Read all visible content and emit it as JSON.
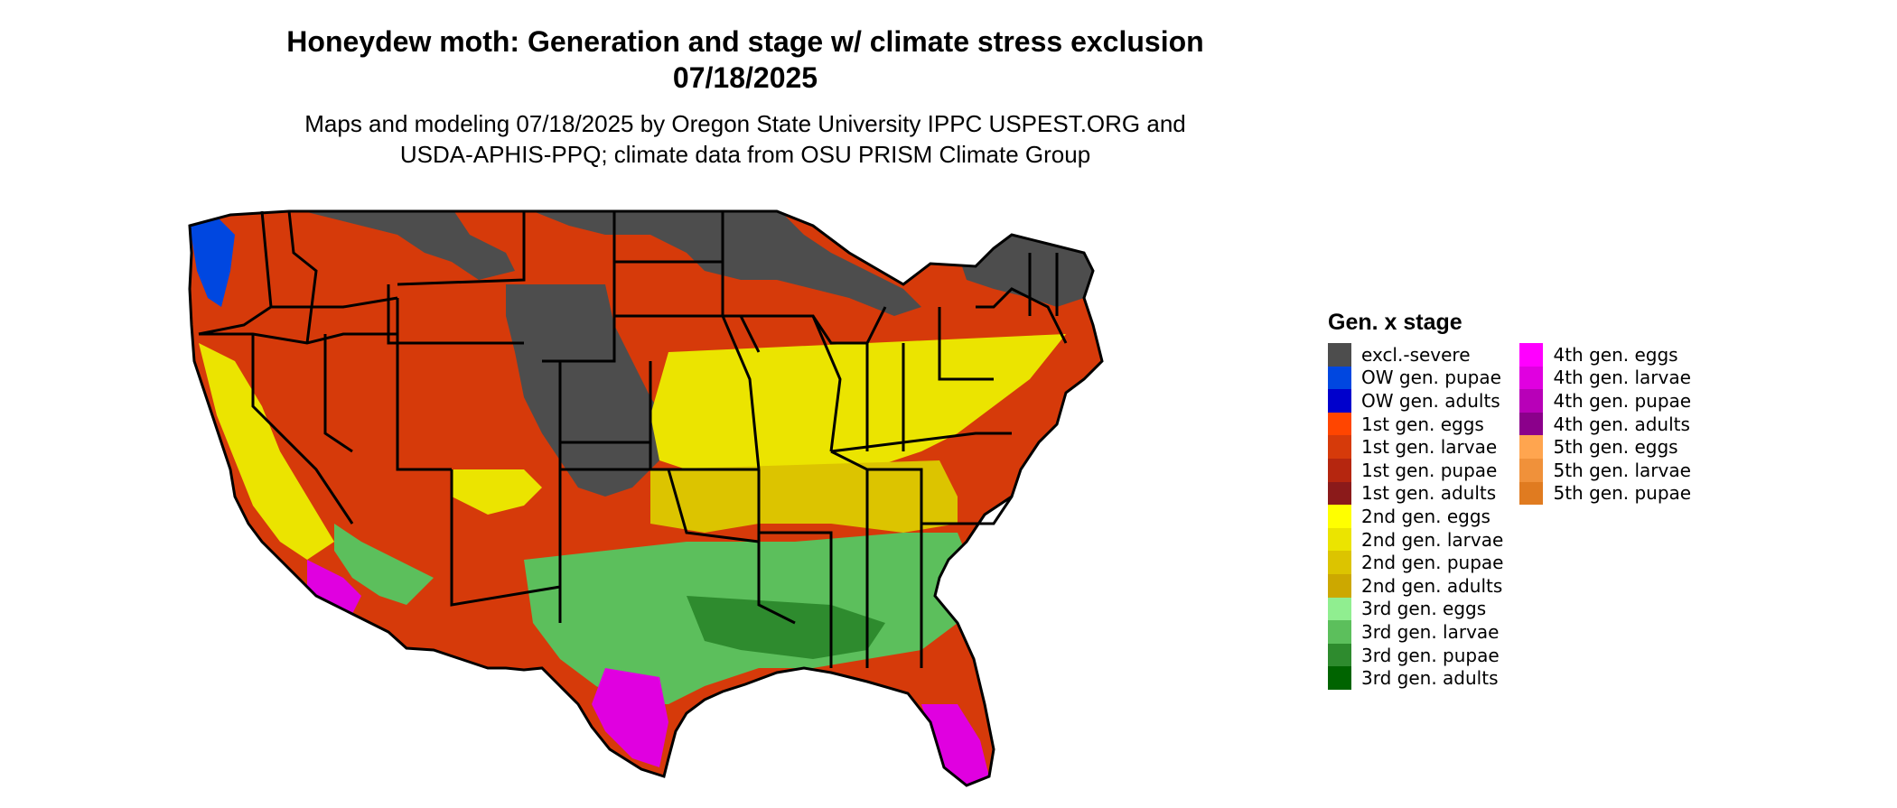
{
  "title": {
    "line1": "Honeydew moth: Generation and stage w/ climate stress exclusion",
    "line2": "07/18/2025"
  },
  "subtitle": {
    "line1": "Maps and modeling 07/18/2025 by Oregon State University IPPC USPEST.ORG and",
    "line2": "USDA-APHIS-PPQ; climate data from OSU PRISM Climate Group"
  },
  "colors": {
    "excluded": "#4d4d4d",
    "border": "#000000",
    "ow_pupae": "#0047e0",
    "gen1_larvae": "#d63a0a",
    "gen1_pupae": "#b5260f",
    "gen2_eggs": "#ffff00",
    "gen2_larvae": "#ebe400",
    "gen2_pupae": "#dcc400",
    "gen3_larvae": "#5cbf5c",
    "gen3_pupae": "#2e8b2e",
    "gen4_larvae": "#e000e0"
  },
  "legend": {
    "title": "Gen. x stage",
    "col1": [
      {
        "label": "excl.-severe",
        "color": "#4d4d4d"
      },
      {
        "label": "OW gen. pupae",
        "color": "#0047e0"
      },
      {
        "label": "OW gen. adults",
        "color": "#0000cc"
      },
      {
        "label": "1st gen. eggs",
        "color": "#ff4500"
      },
      {
        "label": "1st gen. larvae",
        "color": "#d63a0a"
      },
      {
        "label": "1st gen. pupae",
        "color": "#b5260f"
      },
      {
        "label": "1st gen. adults",
        "color": "#8b1a1a"
      },
      {
        "label": "2nd gen. eggs",
        "color": "#ffff00"
      },
      {
        "label": "2nd gen. larvae",
        "color": "#ebe400"
      },
      {
        "label": "2nd gen. pupae",
        "color": "#dcc400"
      },
      {
        "label": "2nd gen. adults",
        "color": "#cca800"
      },
      {
        "label": "3rd gen. eggs",
        "color": "#90ee90"
      },
      {
        "label": "3rd gen. larvae",
        "color": "#5cbf5c"
      },
      {
        "label": "3rd gen. pupae",
        "color": "#2e8b2e"
      },
      {
        "label": "3rd gen. adults",
        "color": "#006400"
      }
    ],
    "col2": [
      {
        "label": "4th gen. eggs",
        "color": "#ff00ff"
      },
      {
        "label": "4th gen. larvae",
        "color": "#e000e0"
      },
      {
        "label": "4th gen. pupae",
        "color": "#b800b8"
      },
      {
        "label": "4th gen. adults",
        "color": "#8b008b"
      },
      {
        "label": "5th gen. eggs",
        "color": "#ffa54f"
      },
      {
        "label": "5th gen. larvae",
        "color": "#f0913a"
      },
      {
        "label": "5th gen. pupae",
        "color": "#e07b20"
      }
    ]
  }
}
